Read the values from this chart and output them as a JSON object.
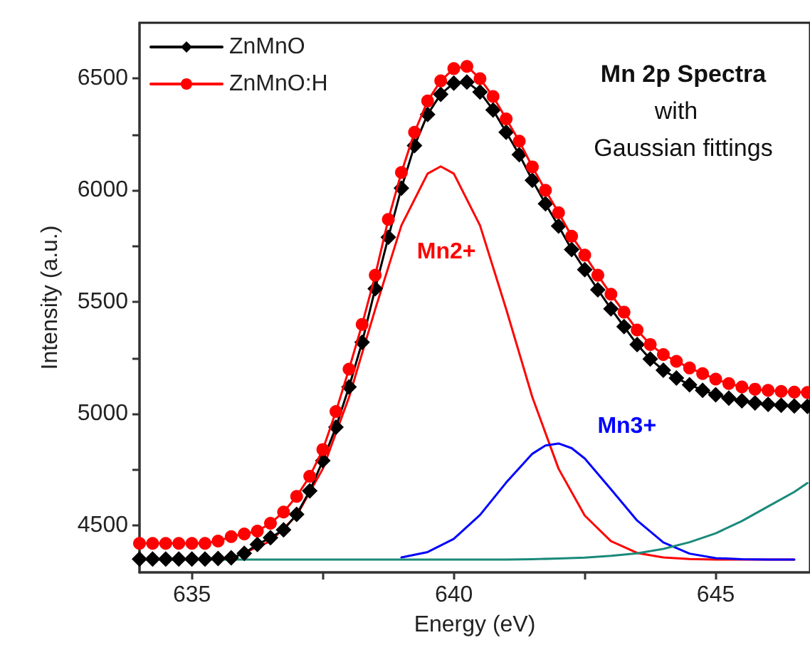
{
  "chart_data": {
    "type": "line",
    "xlabel": "Energy (eV)",
    "ylabel": "Intensity (a.u.)",
    "annotations": [
      "Mn 2p Spectra",
      "with",
      "Gaussian fittings"
    ],
    "xlim": [
      634,
      646.8
    ],
    "ylim": [
      4290,
      6750
    ],
    "xticks": [
      635,
      {
        "value": 637.5,
        "label": null
      },
      640,
      {
        "value": 642.5,
        "label": null
      },
      645
    ],
    "yticks": [
      4500,
      {
        "value": 4750,
        "label": null
      },
      5000,
      {
        "value": 5250,
        "label": null
      },
      5500,
      {
        "value": 5750,
        "label": null
      },
      6000,
      {
        "value": 6250,
        "label": null
      },
      6500
    ],
    "grid": false,
    "legend": "top left",
    "series": [
      {
        "name": "ZnMnO",
        "color": "#000000",
        "marker": "diamond",
        "x": [
          634,
          634.25,
          634.5,
          634.75,
          635,
          635.25,
          635.5,
          635.75,
          636,
          636.25,
          636.5,
          636.75,
          637,
          637.25,
          637.5,
          637.75,
          638,
          638.25,
          638.5,
          638.75,
          639,
          639.25,
          639.5,
          639.75,
          640,
          640.25,
          640.5,
          640.75,
          641,
          641.25,
          641.5,
          641.75,
          642,
          642.25,
          642.5,
          642.75,
          643,
          643.25,
          643.5,
          643.75,
          644,
          644.25,
          644.5,
          644.75,
          645,
          645.25,
          645.5,
          645.75,
          646,
          646.25,
          646.5,
          646.75
        ],
        "values": [
          4350,
          4350,
          4350,
          4350,
          4350,
          4350,
          4352,
          4355,
          4375,
          4415,
          4445,
          4480,
          4550,
          4655,
          4790,
          4940,
          5120,
          5320,
          5560,
          5790,
          6010,
          6200,
          6340,
          6430,
          6480,
          6485,
          6440,
          6360,
          6260,
          6160,
          6045,
          5940,
          5840,
          5735,
          5645,
          5555,
          5470,
          5390,
          5310,
          5245,
          5195,
          5160,
          5130,
          5105,
          5085,
          5070,
          5058,
          5048,
          5042,
          5038,
          5035,
          5033
        ]
      },
      {
        "name": "ZnMnO:H",
        "color": "#ff0000",
        "marker": "circle",
        "x": [
          634,
          634.25,
          634.5,
          634.75,
          635,
          635.25,
          635.5,
          635.75,
          636,
          636.25,
          636.5,
          636.75,
          637,
          637.25,
          637.5,
          637.75,
          638,
          638.25,
          638.5,
          638.75,
          639,
          639.25,
          639.5,
          639.75,
          640,
          640.25,
          640.5,
          640.75,
          641,
          641.25,
          641.5,
          641.75,
          642,
          642.25,
          642.5,
          642.75,
          643,
          643.25,
          643.5,
          643.75,
          644,
          644.25,
          644.5,
          644.75,
          645,
          645.25,
          645.5,
          645.75,
          646,
          646.25,
          646.5,
          646.75
        ],
        "values": [
          4420,
          4420,
          4420,
          4420,
          4420,
          4420,
          4430,
          4450,
          4462,
          4475,
          4510,
          4560,
          4630,
          4720,
          4840,
          5010,
          5200,
          5400,
          5620,
          5870,
          6080,
          6260,
          6400,
          6490,
          6545,
          6555,
          6500,
          6420,
          6320,
          6220,
          6105,
          6000,
          5900,
          5795,
          5710,
          5620,
          5535,
          5455,
          5375,
          5310,
          5265,
          5235,
          5205,
          5180,
          5155,
          5135,
          5120,
          5110,
          5105,
          5100,
          5097,
          5095
        ]
      },
      {
        "name": "Mn2+",
        "color": "#ff0000",
        "marker": "none",
        "x": [
          636,
          636.5,
          637,
          637.5,
          638,
          638.5,
          639,
          639.5,
          639.75,
          640,
          640.5,
          641,
          641.5,
          642,
          642.5,
          643,
          643.5,
          644,
          644.5,
          645,
          645.5,
          646,
          646.5
        ],
        "values": [
          4377,
          4430,
          4544,
          4754,
          5074,
          5468,
          5843,
          6075,
          6107,
          6075,
          5843,
          5468,
          5074,
          4754,
          4544,
          4430,
          4377,
          4357,
          4350,
          4347,
          4347,
          4347,
          4347
        ]
      },
      {
        "name": "Mn3+",
        "color": "#0000ff",
        "marker": "none",
        "x": [
          639,
          639.5,
          640,
          640.5,
          641,
          641.5,
          641.75,
          642,
          642.25,
          642.5,
          643,
          643.5,
          644,
          644.5,
          645,
          645.5,
          646,
          646.5
        ],
        "values": [
          4357,
          4381,
          4440,
          4547,
          4692,
          4821,
          4858,
          4867,
          4846,
          4800,
          4662,
          4522,
          4424,
          4374,
          4354,
          4349,
          4347,
          4347
        ]
      },
      {
        "color": "#1a8a7a",
        "marker": "none",
        "x": [
          634,
          635,
          636,
          637,
          638,
          639,
          640,
          641,
          641.5,
          642,
          642.5,
          643,
          643.5,
          644,
          644.5,
          645,
          645.5,
          646,
          646.5,
          646.75
        ],
        "values": [
          4347,
          4347,
          4347,
          4347,
          4347,
          4347,
          4347,
          4347,
          4349,
          4352,
          4356,
          4364,
          4375,
          4395,
          4425,
          4465,
          4520,
          4585,
          4650,
          4690
        ]
      }
    ]
  }
}
